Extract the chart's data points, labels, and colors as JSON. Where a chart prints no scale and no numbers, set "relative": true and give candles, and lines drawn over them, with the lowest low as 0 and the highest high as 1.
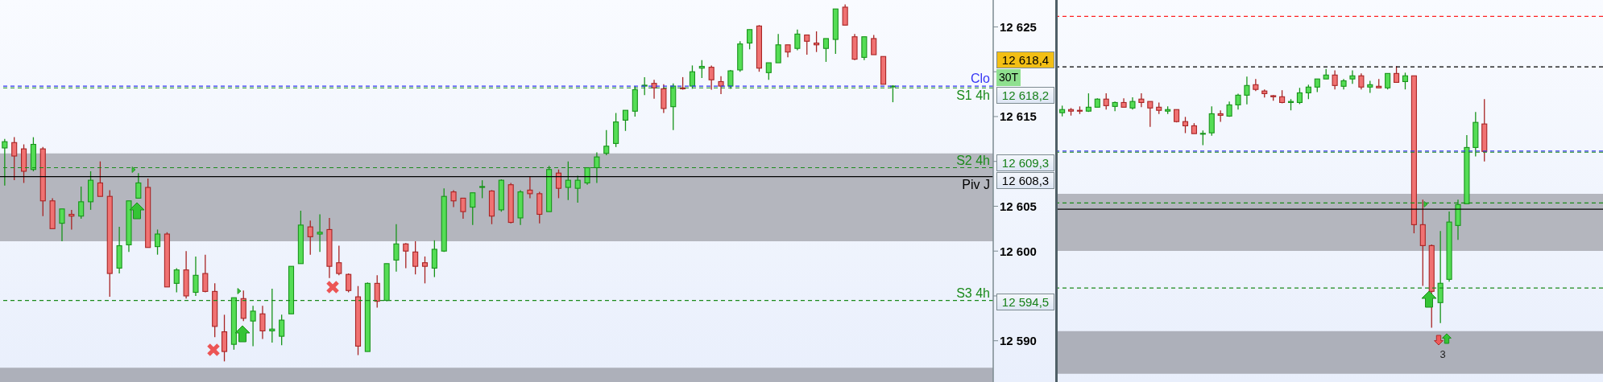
{
  "chart_data": [
    {
      "type": "candlestick",
      "categories": [
        null,
        null,
        null,
        null,
        null,
        null,
        null,
        null,
        null,
        null,
        null,
        null,
        null,
        null,
        null,
        null,
        null,
        null,
        null,
        null,
        null,
        null,
        null,
        null,
        null,
        null,
        null,
        null,
        null,
        null,
        null,
        null,
        null,
        null,
        null,
        null,
        null,
        null,
        null,
        null,
        null,
        null,
        null,
        null,
        null,
        null,
        null,
        null,
        null,
        null,
        null,
        null,
        null,
        null,
        null,
        null,
        null,
        null,
        null,
        null,
        null,
        null,
        null,
        null,
        null,
        null,
        null,
        null,
        null,
        null,
        null,
        null,
        null,
        null,
        null,
        null,
        null,
        null,
        null,
        null,
        null,
        null,
        null,
        null,
        null,
        null,
        null,
        null,
        null,
        null,
        null,
        null,
        null,
        null,
        null,
        null,
        null,
        null,
        null,
        null,
        null,
        null,
        null,
        null
      ],
      "ohlc": [
        [
          12611.5,
          12612.5,
          12607.3,
          12612.2
        ],
        [
          12612.1,
          12612.7,
          12607.9,
          12610.6
        ],
        [
          12611.4,
          12611.9,
          12607.6,
          12608.9
        ],
        [
          12609.1,
          12612.7,
          12608.9,
          12611.9
        ],
        [
          12611.4,
          12611.6,
          12603.9,
          12605.6
        ],
        [
          12605.6,
          12605.9,
          12602.5,
          12602.5
        ],
        [
          12603.1,
          12604.7,
          12601.1,
          12604.7
        ],
        [
          12604.1,
          12604.6,
          12602.4,
          12603.9
        ],
        [
          12603.9,
          12607.2,
          12603.6,
          12605.5
        ],
        [
          12605.5,
          12608.9,
          12604.6,
          12607.9
        ],
        [
          12607.6,
          12610.0,
          12606.1,
          12606.1
        ],
        [
          12606.1,
          12606.8,
          12594.9,
          12597.5
        ],
        [
          12598.1,
          12602.7,
          12597.5,
          12600.6
        ],
        [
          12600.7,
          12605.6,
          12599.9,
          12605.6
        ],
        [
          12605.9,
          12608.7,
          12605.9,
          12607.6
        ],
        [
          12607.1,
          12608.1,
          12600.4,
          12600.4
        ],
        [
          12600.5,
          12602.4,
          12599.6,
          12601.9
        ],
        [
          12601.9,
          12602.1,
          12596.0,
          12596.0
        ],
        [
          12596.4,
          12598.1,
          12595.4,
          12597.9
        ],
        [
          12597.9,
          12600.0,
          12594.7,
          12595.0
        ],
        [
          12595.4,
          12599.4,
          12595.0,
          12597.3
        ],
        [
          12597.5,
          12599.6,
          12595.4,
          12595.5
        ],
        [
          12595.5,
          12596.4,
          12590.4,
          12591.6
        ],
        [
          12591.0,
          12592.9,
          12587.7,
          12588.8
        ],
        [
          12589.6,
          12594.8,
          12589.0,
          12594.8
        ],
        [
          12594.7,
          12595.6,
          12592.2,
          12592.5
        ],
        [
          12592.2,
          12593.9,
          12589.4,
          12593.3
        ],
        [
          12593.0,
          12593.9,
          12590.2,
          12591.1
        ],
        [
          12591.1,
          12595.8,
          12589.8,
          12591.3
        ],
        [
          12590.5,
          12592.9,
          12589.5,
          12592.3
        ],
        [
          12593.0,
          12598.3,
          12593.0,
          12598.3
        ],
        [
          12598.6,
          12604.5,
          12598.6,
          12602.9
        ],
        [
          12602.7,
          12603.4,
          12599.6,
          12601.6
        ],
        [
          12601.9,
          12604.1,
          12599.9,
          12602.1
        ],
        [
          12602.4,
          12603.7,
          12597.0,
          12598.3
        ],
        [
          12598.7,
          12600.6,
          12597.3,
          12597.5
        ],
        [
          12597.4,
          12597.5,
          12595.4,
          12595.6
        ],
        [
          12594.9,
          12596.1,
          12588.4,
          12589.4
        ],
        [
          12588.8,
          12596.5,
          12588.8,
          12596.4
        ],
        [
          12596.4,
          12597.3,
          12593.7,
          12594.4
        ],
        [
          12594.5,
          12598.6,
          12594.4,
          12598.6
        ],
        [
          12599.0,
          12603.0,
          12597.7,
          12600.8
        ],
        [
          12600.8,
          12600.9,
          12598.1,
          12600.0
        ],
        [
          12599.9,
          12601.1,
          12597.4,
          12598.3
        ],
        [
          12598.7,
          12599.4,
          12596.4,
          12598.3
        ],
        [
          12598.1,
          12601.2,
          12597.1,
          12600.2
        ],
        [
          12600.0,
          12607.0,
          12599.9,
          12606.1
        ],
        [
          12606.6,
          12606.8,
          12604.9,
          12605.6
        ],
        [
          12605.9,
          12605.9,
          12603.6,
          12604.4
        ],
        [
          12604.9,
          12606.5,
          12602.9,
          12606.5
        ],
        [
          12607.1,
          12607.9,
          12605.9,
          12607.2
        ],
        [
          12606.7,
          12606.8,
          12603.0,
          12603.9
        ],
        [
          12604.6,
          12608.0,
          12604.4,
          12607.9
        ],
        [
          12607.4,
          12607.6,
          12603.1,
          12603.2
        ],
        [
          12603.7,
          12606.8,
          12602.9,
          12606.6
        ],
        [
          12606.8,
          12608.3,
          12605.9,
          12606.4
        ],
        [
          12606.4,
          12606.6,
          12603.1,
          12604.1
        ],
        [
          12604.4,
          12609.5,
          12604.4,
          12609.1
        ],
        [
          12608.7,
          12609.1,
          12605.9,
          12607.0
        ],
        [
          12607.1,
          12610.0,
          12605.7,
          12607.9
        ],
        [
          12607.0,
          12608.4,
          12605.4,
          12607.9
        ],
        [
          12607.6,
          12609.3,
          12607.4,
          12609.3
        ],
        [
          12609.3,
          12611.0,
          12607.6,
          12610.5
        ],
        [
          12610.9,
          12613.5,
          12610.7,
          12611.7
        ],
        [
          12612.0,
          12615.4,
          12611.6,
          12614.4
        ],
        [
          12614.6,
          12615.7,
          12613.4,
          12615.7
        ],
        [
          12615.6,
          12618.4,
          12615.0,
          12618.0
        ],
        [
          12618.4,
          12619.4,
          12617.4,
          12618.5
        ],
        [
          12618.7,
          12619.1,
          12617.0,
          12618.2
        ],
        [
          12618.1,
          12618.6,
          12615.4,
          12615.9
        ],
        [
          12616.1,
          12618.7,
          12613.5,
          12618.4
        ],
        [
          12618.2,
          12619.4,
          12618.0,
          12618.1
        ],
        [
          12618.4,
          12620.7,
          12618.1,
          12620.0
        ],
        [
          12620.4,
          12621.3,
          12619.3,
          12620.6
        ],
        [
          12620.5,
          12620.7,
          12618.0,
          12619.1
        ],
        [
          12618.9,
          12619.5,
          12617.5,
          12618.4
        ],
        [
          12618.4,
          12620.2,
          12618.1,
          12620.1
        ],
        [
          12620.2,
          12623.4,
          12620.0,
          12623.1
        ],
        [
          12623.2,
          12624.7,
          12622.5,
          12624.7
        ],
        [
          12625.1,
          12625.2,
          12620.0,
          12620.4
        ],
        [
          12619.9,
          12621.0,
          12619.1,
          12621.0
        ],
        [
          12621.0,
          12624.2,
          12621.0,
          12623.0
        ],
        [
          12623.0,
          12623.0,
          12621.6,
          12622.2
        ],
        [
          12622.6,
          12624.7,
          12622.4,
          12624.2
        ],
        [
          12624.1,
          12624.1,
          12621.9,
          12623.4
        ],
        [
          12623.2,
          12624.5,
          12622.2,
          12623.0
        ],
        [
          12622.6,
          12623.7,
          12621.1,
          12623.7
        ],
        [
          12623.6,
          12627.0,
          12622.0,
          12627.0
        ],
        [
          12627.2,
          12627.5,
          12625.2,
          12625.2
        ],
        [
          12623.9,
          12624.2,
          12621.3,
          12621.4
        ],
        [
          12621.6,
          12623.9,
          12621.3,
          12623.9
        ],
        [
          12623.7,
          12624.1,
          12621.9,
          12621.9
        ],
        [
          12621.7,
          12621.7,
          12618.6,
          12618.6
        ],
        [
          12618.4,
          12618.5,
          12616.6,
          12618.4
        ],
        null,
        null,
        null,
        null,
        null,
        null,
        null,
        null,
        null,
        null
      ],
      "ylim": [
        12585.4,
        12628
      ],
      "yticks": [
        {
          "value": 12625,
          "label": "12 625"
        },
        {
          "value": 12620,
          "label": null
        },
        {
          "value": 12615,
          "label": "12 615"
        },
        {
          "value": 12610,
          "label": null
        },
        {
          "value": 12605,
          "label": "12 605"
        },
        {
          "value": 12600,
          "label": "12 600"
        },
        {
          "value": 12595,
          "label": null
        },
        {
          "value": 12590,
          "label": "12 590"
        }
      ],
      "tick_labels": "y",
      "ref_lines": [
        {
          "axis": "y",
          "value": 12618.4,
          "label": "Clo",
          "color": "#3535f5",
          "line_style": "dashed"
        },
        {
          "axis": "y",
          "value": 12618.2,
          "label": "S1 4h",
          "color": "#1a8a1a",
          "line_style": "dashed"
        },
        {
          "axis": "y",
          "value": 12609.3,
          "label": "S2 4h",
          "color": "#1a8a1a",
          "line_style": "dashed"
        },
        {
          "axis": "y",
          "value": 12608.3,
          "label": "Piv J",
          "color": "#000000",
          "line_style": "solid"
        },
        {
          "axis": "y",
          "value": 12594.5,
          "label": "S3 4h",
          "color": "#1a8a1a",
          "line_style": "dashed"
        }
      ],
      "bands": [
        {
          "axis": "y",
          "from": 12601.1,
          "to": 12610.9,
          "color": "#b4b6be"
        },
        {
          "axis": "y",
          "from": 12585.4,
          "to": 12587.0,
          "color": "#adb0ba"
        }
      ],
      "annotations": [
        "12 618,4",
        "30T",
        "12 618,2",
        "12 609,3",
        "12 608,3",
        "12 594,5"
      ]
    },
    {
      "type": "candlestick",
      "relative": true,
      "tick_labels": false,
      "categories": [
        null,
        null,
        null,
        null,
        null,
        null,
        null,
        null,
        null,
        null,
        null,
        null,
        null,
        null,
        null,
        null,
        null,
        null,
        null,
        null,
        null,
        null,
        null,
        null,
        null,
        null,
        null,
        null,
        null,
        null,
        null,
        null,
        null,
        null,
        null,
        null,
        null,
        null,
        null,
        null,
        null,
        null,
        null,
        null,
        null,
        null,
        null,
        null,
        null,
        null,
        null,
        null,
        null,
        null,
        null,
        null,
        null,
        null,
        null,
        null,
        null,
        null
      ],
      "ohlc": [
        [
          0.822,
          0.849,
          0.808,
          0.834
        ],
        [
          0.834,
          0.84,
          0.811,
          0.828
        ],
        [
          0.831,
          0.846,
          0.817,
          0.828
        ],
        [
          0.828,
          0.896,
          0.825,
          0.843
        ],
        [
          0.843,
          0.877,
          0.843,
          0.874
        ],
        [
          0.874,
          0.896,
          0.834,
          0.849
        ],
        [
          0.846,
          0.865,
          0.828,
          0.861
        ],
        [
          0.861,
          0.877,
          0.843,
          0.843
        ],
        [
          0.84,
          0.881,
          0.834,
          0.865
        ],
        [
          0.874,
          0.896,
          0.843,
          0.861
        ],
        [
          0.865,
          0.865,
          0.768,
          0.84
        ],
        [
          0.843,
          0.861,
          0.817,
          0.831
        ],
        [
          0.828,
          0.846,
          0.817,
          0.834
        ],
        [
          0.834,
          0.834,
          0.785,
          0.788
        ],
        [
          0.788,
          0.806,
          0.744,
          0.772
        ],
        [
          0.772,
          0.782,
          0.742,
          0.742
        ],
        [
          0.742,
          0.754,
          0.698,
          0.743
        ],
        [
          0.745,
          0.846,
          0.734,
          0.818
        ],
        [
          0.818,
          0.831,
          0.787,
          0.812
        ],
        [
          0.809,
          0.865,
          0.806,
          0.852
        ],
        [
          0.852,
          0.895,
          0.834,
          0.889
        ],
        [
          0.889,
          0.96,
          0.854,
          0.926
        ],
        [
          0.929,
          0.951,
          0.905,
          0.911
        ],
        [
          0.905,
          0.911,
          0.88,
          0.895
        ],
        [
          0.887,
          0.889,
          0.868,
          0.883
        ],
        [
          0.883,
          0.908,
          0.858,
          0.861
        ],
        [
          0.861,
          0.874,
          0.831,
          0.865
        ],
        [
          0.861,
          0.917,
          0.855,
          0.898
        ],
        [
          0.898,
          0.929,
          0.874,
          0.92
        ],
        [
          0.92,
          0.951,
          0.901,
          0.951
        ],
        [
          0.951,
          0.989,
          0.951,
          0.966
        ],
        [
          0.966,
          0.984,
          0.911,
          0.926
        ],
        [
          0.923,
          0.951,
          0.911,
          0.944
        ],
        [
          0.951,
          0.984,
          0.932,
          0.963
        ],
        [
          0.963,
          0.972,
          0.911,
          0.92
        ],
        [
          0.92,
          0.944,
          0.898,
          0.929
        ],
        [
          0.923,
          0.951,
          0.917,
          0.917
        ],
        [
          0.917,
          0.972,
          0.911,
          0.972
        ],
        [
          0.972,
          1.0,
          0.938,
          0.938
        ],
        [
          0.941,
          0.975,
          0.911,
          0.963
        ],
        [
          0.963,
          0.963,
          0.361,
          0.394
        ],
        [
          0.394,
          0.49,
          0.16,
          0.314
        ],
        [
          0.314,
          0.318,
          0,
          0.139
        ],
        [
          0.096,
          0.37,
          0.018,
          0.17
        ],
        [
          0.185,
          0.444,
          0.176,
          0.404
        ],
        [
          0.391,
          0.49,
          0.336,
          0.471
        ],
        [
          0.474,
          0.736,
          0.474,
          0.689
        ],
        [
          0.689,
          0.825,
          0.655,
          0.785
        ],
        [
          0.779,
          0.874,
          0.636,
          0.674
        ],
        null,
        null,
        null,
        null,
        null,
        null,
        null,
        null,
        null,
        null,
        null,
        null,
        null
      ],
      "ref_lines": [
        {
          "axis": "y",
          "value": 1.19,
          "color": "#ff2020",
          "line_style": "dashed"
        },
        {
          "axis": "y",
          "value": 0.997,
          "color": "#000000",
          "line_style": "dashed"
        },
        {
          "axis": "y",
          "value": 0.675,
          "color": "#3535f5",
          "line_style": "dashed"
        },
        {
          "axis": "y",
          "value": 0.671,
          "color": "#1a8a1a",
          "line_style": "dashed"
        },
        {
          "axis": "y",
          "value": 0.477,
          "color": "#1a8a1a",
          "line_style": "dashed"
        },
        {
          "axis": "y",
          "value": 0.453,
          "color": "#000000",
          "line_style": "solid"
        },
        {
          "axis": "y",
          "value": 0.152,
          "color": "#1a8a1a",
          "line_style": "dashed"
        }
      ],
      "bands": [
        {
          "axis": "y",
          "from": 0.294,
          "to": 0.512,
          "color": "#b4b6be"
        },
        {
          "axis": "y",
          "from": -0.176,
          "to": -0.013,
          "color": "#adb0ba"
        }
      ],
      "annotations": [
        "3"
      ]
    }
  ]
}
